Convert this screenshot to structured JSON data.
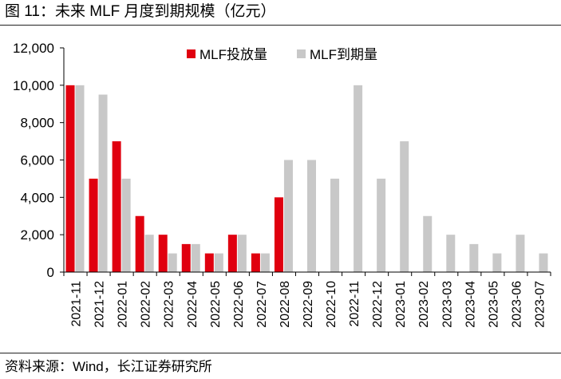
{
  "figure": {
    "title": "图 11：未来 MLF 月度到期规模（亿元）",
    "source": "资料来源：Wind，长江证券研究所"
  },
  "chart_data": {
    "type": "bar",
    "categories": [
      "2021-11",
      "2021-12",
      "2022-01",
      "2022-02",
      "2022-03",
      "2022-04",
      "2022-05",
      "2022-06",
      "2022-07",
      "2022-08",
      "2022-09",
      "2022-10",
      "2022-11",
      "2022-12",
      "2023-01",
      "2023-02",
      "2023-03",
      "2023-04",
      "2023-05",
      "2023-06",
      "2023-07"
    ],
    "series": [
      {
        "name": "MLF投放量",
        "color": "#e0000f",
        "values": [
          10000,
          5000,
          7000,
          3000,
          2000,
          1500,
          1000,
          2000,
          1000,
          4000,
          0,
          0,
          0,
          0,
          0,
          0,
          0,
          0,
          0,
          0,
          0
        ]
      },
      {
        "name": "MLF到期量",
        "color": "#c8c8c8",
        "values": [
          10000,
          9500,
          5000,
          2000,
          1000,
          1500,
          1000,
          2000,
          1000,
          6000,
          6000,
          5000,
          10000,
          5000,
          7000,
          3000,
          2000,
          1500,
          1000,
          2000,
          1000
        ]
      }
    ],
    "ylim": [
      0,
      12000
    ],
    "yticks": [
      0,
      2000,
      4000,
      6000,
      8000,
      10000,
      12000
    ],
    "ytick_labels": [
      "0",
      "2,000",
      "4,000",
      "6,000",
      "8,000",
      "10,000",
      "12,000"
    ],
    "grid": false,
    "legend": "top-center"
  }
}
